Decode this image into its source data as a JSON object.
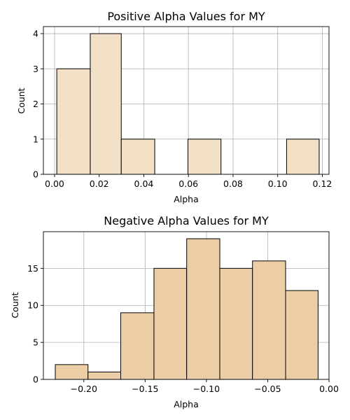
{
  "chart_data": [
    {
      "type": "histogram",
      "title": "Positive Alpha Values for MY",
      "xlabel": "Alpha",
      "ylabel": "Count",
      "xlim": [
        -0.005,
        0.123
      ],
      "ylim": [
        0,
        4.2
      ],
      "xticks": [
        0.0,
        0.02,
        0.04,
        0.06,
        0.08,
        0.1,
        0.12
      ],
      "xtick_labels": [
        "0.00",
        "0.02",
        "0.04",
        "0.06",
        "0.08",
        "0.10",
        "0.12"
      ],
      "yticks": [
        0,
        1,
        2,
        3,
        4
      ],
      "ytick_labels": [
        "0",
        "1",
        "2",
        "3",
        "4"
      ],
      "grid": true,
      "bar_color": "#f2e1c7",
      "bins": [
        {
          "x0": 0.001,
          "x1": 0.016,
          "count": 3
        },
        {
          "x0": 0.016,
          "x1": 0.0299,
          "count": 4
        },
        {
          "x0": 0.0299,
          "x1": 0.0449,
          "count": 1
        },
        {
          "x0": 0.0449,
          "x1": 0.0598,
          "count": 0
        },
        {
          "x0": 0.0598,
          "x1": 0.0746,
          "count": 1
        },
        {
          "x0": 0.0746,
          "x1": 0.0896,
          "count": 0
        },
        {
          "x0": 0.0896,
          "x1": 0.104,
          "count": 0
        },
        {
          "x0": 0.104,
          "x1": 0.1186,
          "count": 1
        }
      ]
    },
    {
      "type": "histogram",
      "title": "Negative Alpha Values for MY",
      "xlabel": "Alpha",
      "ylabel": "Count",
      "xlim": [
        -0.233,
        0.0
      ],
      "ylim": [
        0,
        19.95
      ],
      "xticks": [
        -0.2,
        -0.15,
        -0.1,
        -0.05,
        0.0
      ],
      "xtick_labels": [
        "−0.20",
        "−0.15",
        "−0.10",
        "−0.05",
        "0.00"
      ],
      "yticks": [
        0,
        5,
        10,
        15
      ],
      "ytick_labels": [
        "0",
        "5",
        "10",
        "15"
      ],
      "grid": true,
      "bar_color": "#ebcea6",
      "bins": [
        {
          "x0": -0.2233,
          "x1": -0.1966,
          "count": 2
        },
        {
          "x0": -0.1966,
          "x1": -0.1699,
          "count": 1
        },
        {
          "x0": -0.1699,
          "x1": -0.1428,
          "count": 9
        },
        {
          "x0": -0.1428,
          "x1": -0.1161,
          "count": 15
        },
        {
          "x0": -0.1161,
          "x1": -0.0891,
          "count": 19
        },
        {
          "x0": -0.0891,
          "x1": -0.0624,
          "count": 15
        },
        {
          "x0": -0.0624,
          "x1": -0.0354,
          "count": 16
        },
        {
          "x0": -0.0354,
          "x1": -0.0089,
          "count": 12
        }
      ]
    }
  ]
}
